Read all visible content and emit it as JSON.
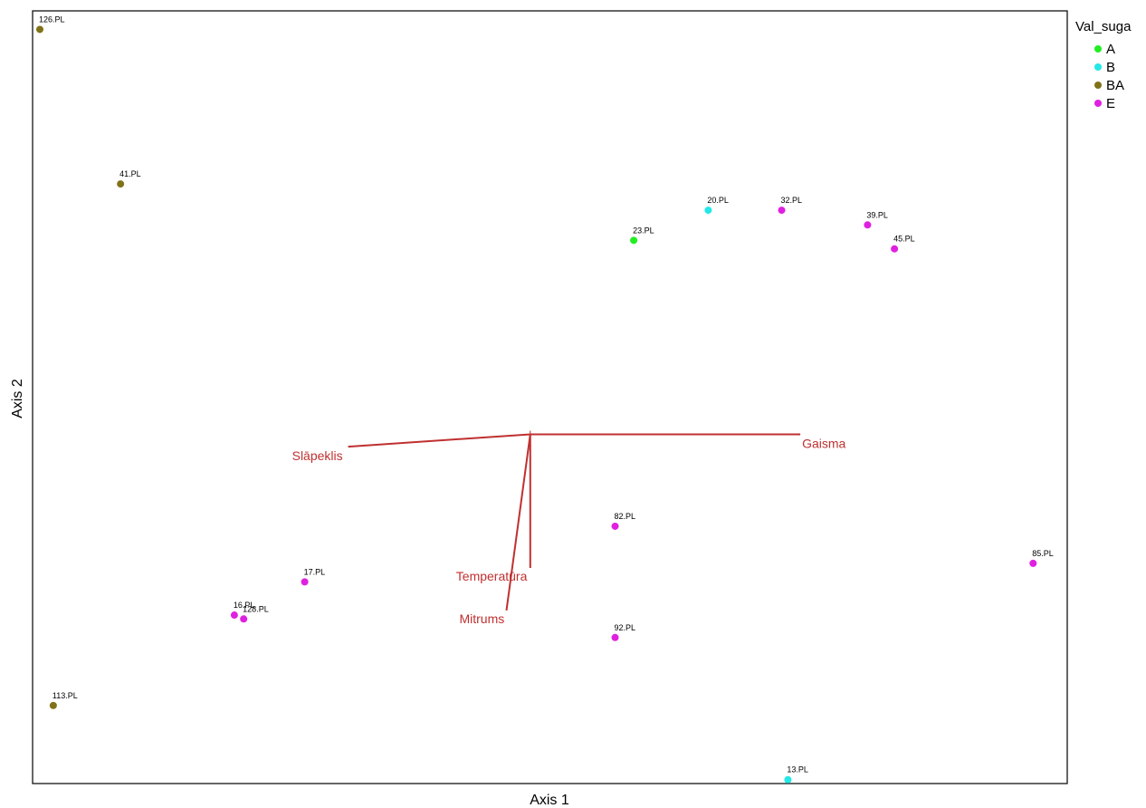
{
  "chart_data": {
    "type": "scatter",
    "title": "",
    "xlabel": "Axis 1",
    "ylabel": "Axis 2",
    "xlim": [
      0,
      100
    ],
    "ylim": [
      0,
      100
    ],
    "grid": false,
    "legend": {
      "title": "Val_suga",
      "placement": "top-right, outside plot",
      "entries": [
        {
          "name": "A",
          "color": "#22ee22"
        },
        {
          "name": "B",
          "color": "#22e8e8"
        },
        {
          "name": "BA",
          "color": "#807218"
        },
        {
          "name": "E",
          "color": "#e020e0"
        }
      ]
    },
    "points": [
      {
        "label": "126.PL",
        "group": "BA",
        "x": 0.7,
        "y": 97.6
      },
      {
        "label": "41.PL",
        "group": "BA",
        "x": 8.5,
        "y": 77.6
      },
      {
        "label": "113.PL",
        "group": "BA",
        "x": 2.0,
        "y": 10.1
      },
      {
        "label": "23.PL",
        "group": "A",
        "x": 58.1,
        "y": 70.3
      },
      {
        "label": "20.PL",
        "group": "B",
        "x": 65.3,
        "y": 74.2
      },
      {
        "label": "13.PL",
        "group": "B",
        "x": 73.0,
        "y": 0.5
      },
      {
        "label": "32.PL",
        "group": "E",
        "x": 72.4,
        "y": 74.2
      },
      {
        "label": "39.PL",
        "group": "E",
        "x": 80.7,
        "y": 72.3
      },
      {
        "label": "45.PL",
        "group": "E",
        "x": 83.3,
        "y": 69.2
      },
      {
        "label": "82.PL",
        "group": "E",
        "x": 56.3,
        "y": 33.3
      },
      {
        "label": "85.PL",
        "group": "E",
        "x": 96.7,
        "y": 28.5
      },
      {
        "label": "92.PL",
        "group": "E",
        "x": 56.3,
        "y": 18.9
      },
      {
        "label": "17.PL",
        "group": "E",
        "x": 26.3,
        "y": 26.1
      },
      {
        "label": "16.PL",
        "group": "E",
        "x": 19.5,
        "y": 21.8
      },
      {
        "label": "128.PL",
        "group": "E",
        "x": 20.4,
        "y": 21.3
      }
    ],
    "vectors": {
      "color": "#c03030",
      "origin": {
        "x": 48.1,
        "y": 45.2
      },
      "items": [
        {
          "name": "Slāpeklis",
          "x": 30.5,
          "y": 43.6
        },
        {
          "name": "Gaisma",
          "x": 74.2,
          "y": 45.2
        },
        {
          "name": "Temperatūra",
          "x": 48.1,
          "y": 27.9
        },
        {
          "name": "Mitrums",
          "x": 45.8,
          "y": 22.4
        }
      ]
    }
  }
}
